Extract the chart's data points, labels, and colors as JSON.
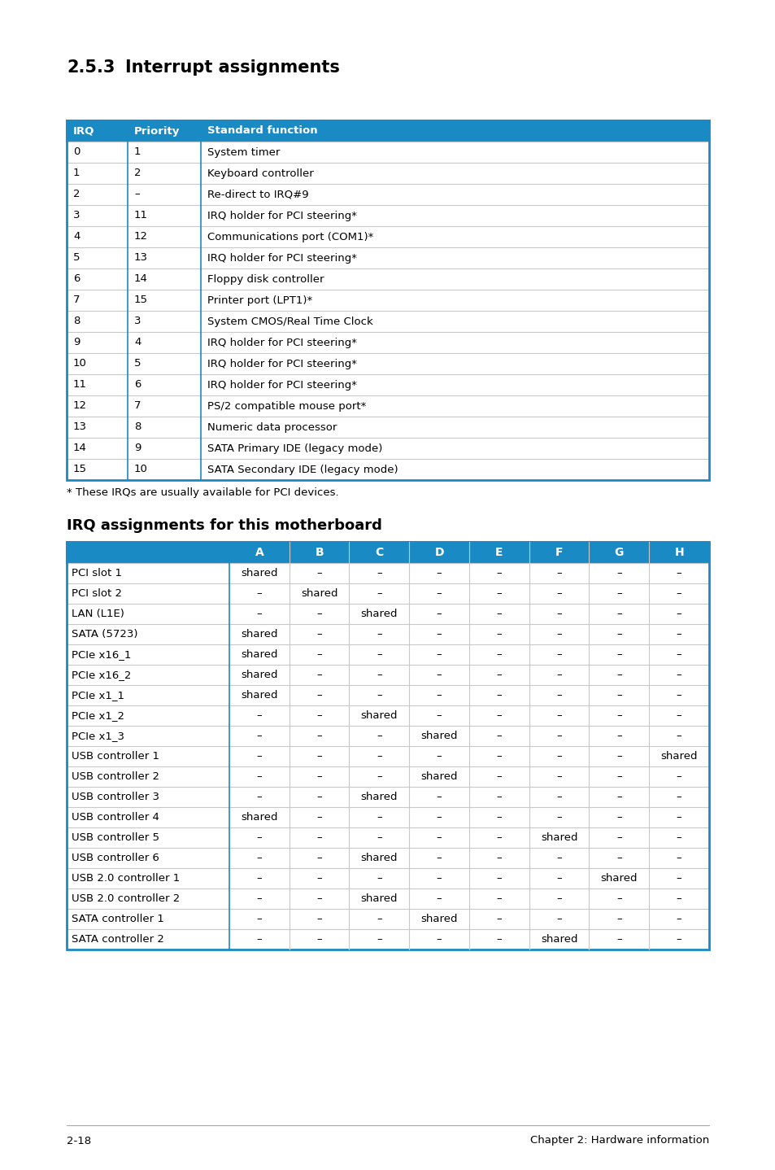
{
  "title_section_num": "2.5.3",
  "title_section_text": "Interrupt assignments",
  "header_color": "#1a8ac4",
  "header_text_color": "#ffffff",
  "border_color": "#1a8ac4",
  "row_line_color": "#c8c8c8",
  "bg_color": "#ffffff",
  "page_bg": "#ffffff",
  "table1_headers": [
    "IRQ",
    "Priority",
    "Standard function"
  ],
  "table1_rows": [
    [
      "0",
      "1",
      "System timer"
    ],
    [
      "1",
      "2",
      "Keyboard controller"
    ],
    [
      "2",
      "–",
      "Re-direct to IRQ#9"
    ],
    [
      "3",
      "11",
      "IRQ holder for PCI steering*"
    ],
    [
      "4",
      "12",
      "Communications port (COM1)*"
    ],
    [
      "5",
      "13",
      "IRQ holder for PCI steering*"
    ],
    [
      "6",
      "14",
      "Floppy disk controller"
    ],
    [
      "7",
      "15",
      "Printer port (LPT1)*"
    ],
    [
      "8",
      "3",
      "System CMOS/Real Time Clock"
    ],
    [
      "9",
      "4",
      "IRQ holder for PCI steering*"
    ],
    [
      "10",
      "5",
      "IRQ holder for PCI steering*"
    ],
    [
      "11",
      "6",
      "IRQ holder for PCI steering*"
    ],
    [
      "12",
      "7",
      "PS/2 compatible mouse port*"
    ],
    [
      "13",
      "8",
      "Numeric data processor"
    ],
    [
      "14",
      "9",
      "SATA Primary IDE (legacy mode)"
    ],
    [
      "15",
      "10",
      "SATA Secondary IDE (legacy mode)"
    ]
  ],
  "footnote": "* These IRQs are usually available for PCI devices.",
  "title2": "IRQ assignments for this motherboard",
  "table2_headers": [
    "",
    "A",
    "B",
    "C",
    "D",
    "E",
    "F",
    "G",
    "H"
  ],
  "table2_rows": [
    [
      "PCI slot 1",
      "shared",
      "–",
      "–",
      "–",
      "–",
      "–",
      "–",
      "–"
    ],
    [
      "PCI slot 2",
      "–",
      "shared",
      "–",
      "–",
      "–",
      "–",
      "–",
      "–"
    ],
    [
      "LAN (L1E)",
      "–",
      "–",
      "shared",
      "–",
      "–",
      "–",
      "–",
      "–"
    ],
    [
      "SATA (5723)",
      "shared",
      "–",
      "–",
      "–",
      "–",
      "–",
      "–",
      "–"
    ],
    [
      "PCIe x16_1",
      "shared",
      "–",
      "–",
      "–",
      "–",
      "–",
      "–",
      "–"
    ],
    [
      "PCIe x16_2",
      "shared",
      "–",
      "–",
      "–",
      "–",
      "–",
      "–",
      "–"
    ],
    [
      "PCIe x1_1",
      "shared",
      "–",
      "–",
      "–",
      "–",
      "–",
      "–",
      "–"
    ],
    [
      "PCIe x1_2",
      "–",
      "–",
      "shared",
      "–",
      "–",
      "–",
      "–",
      "–"
    ],
    [
      "PCIe x1_3",
      "–",
      "–",
      "–",
      "shared",
      "–",
      "–",
      "–",
      "–"
    ],
    [
      "USB controller 1",
      "–",
      "–",
      "–",
      "–",
      "–",
      "–",
      "–",
      "shared"
    ],
    [
      "USB controller 2",
      "–",
      "–",
      "–",
      "shared",
      "–",
      "–",
      "–",
      "–"
    ],
    [
      "USB controller 3",
      "–",
      "–",
      "shared",
      "–",
      "–",
      "–",
      "–",
      "–"
    ],
    [
      "USB controller 4",
      "shared",
      "–",
      "–",
      "–",
      "–",
      "–",
      "–",
      "–"
    ],
    [
      "USB controller 5",
      "–",
      "–",
      "–",
      "–",
      "–",
      "shared",
      "–",
      "–"
    ],
    [
      "USB controller 6",
      "–",
      "–",
      "shared",
      "–",
      "–",
      "–",
      "–",
      "–"
    ],
    [
      "USB 2.0 controller 1",
      "–",
      "–",
      "–",
      "–",
      "–",
      "–",
      "shared",
      "–"
    ],
    [
      "USB 2.0 controller 2",
      "–",
      "–",
      "shared",
      "–",
      "–",
      "–",
      "–",
      "–"
    ],
    [
      "SATA controller 1",
      "–",
      "–",
      "–",
      "shared",
      "–",
      "–",
      "–",
      "–"
    ],
    [
      "SATA controller 2",
      "–",
      "–",
      "–",
      "–",
      "–",
      "shared",
      "–",
      "–"
    ]
  ],
  "footer_left": "2-18",
  "footer_right": "Chapter 2: Hardware information"
}
